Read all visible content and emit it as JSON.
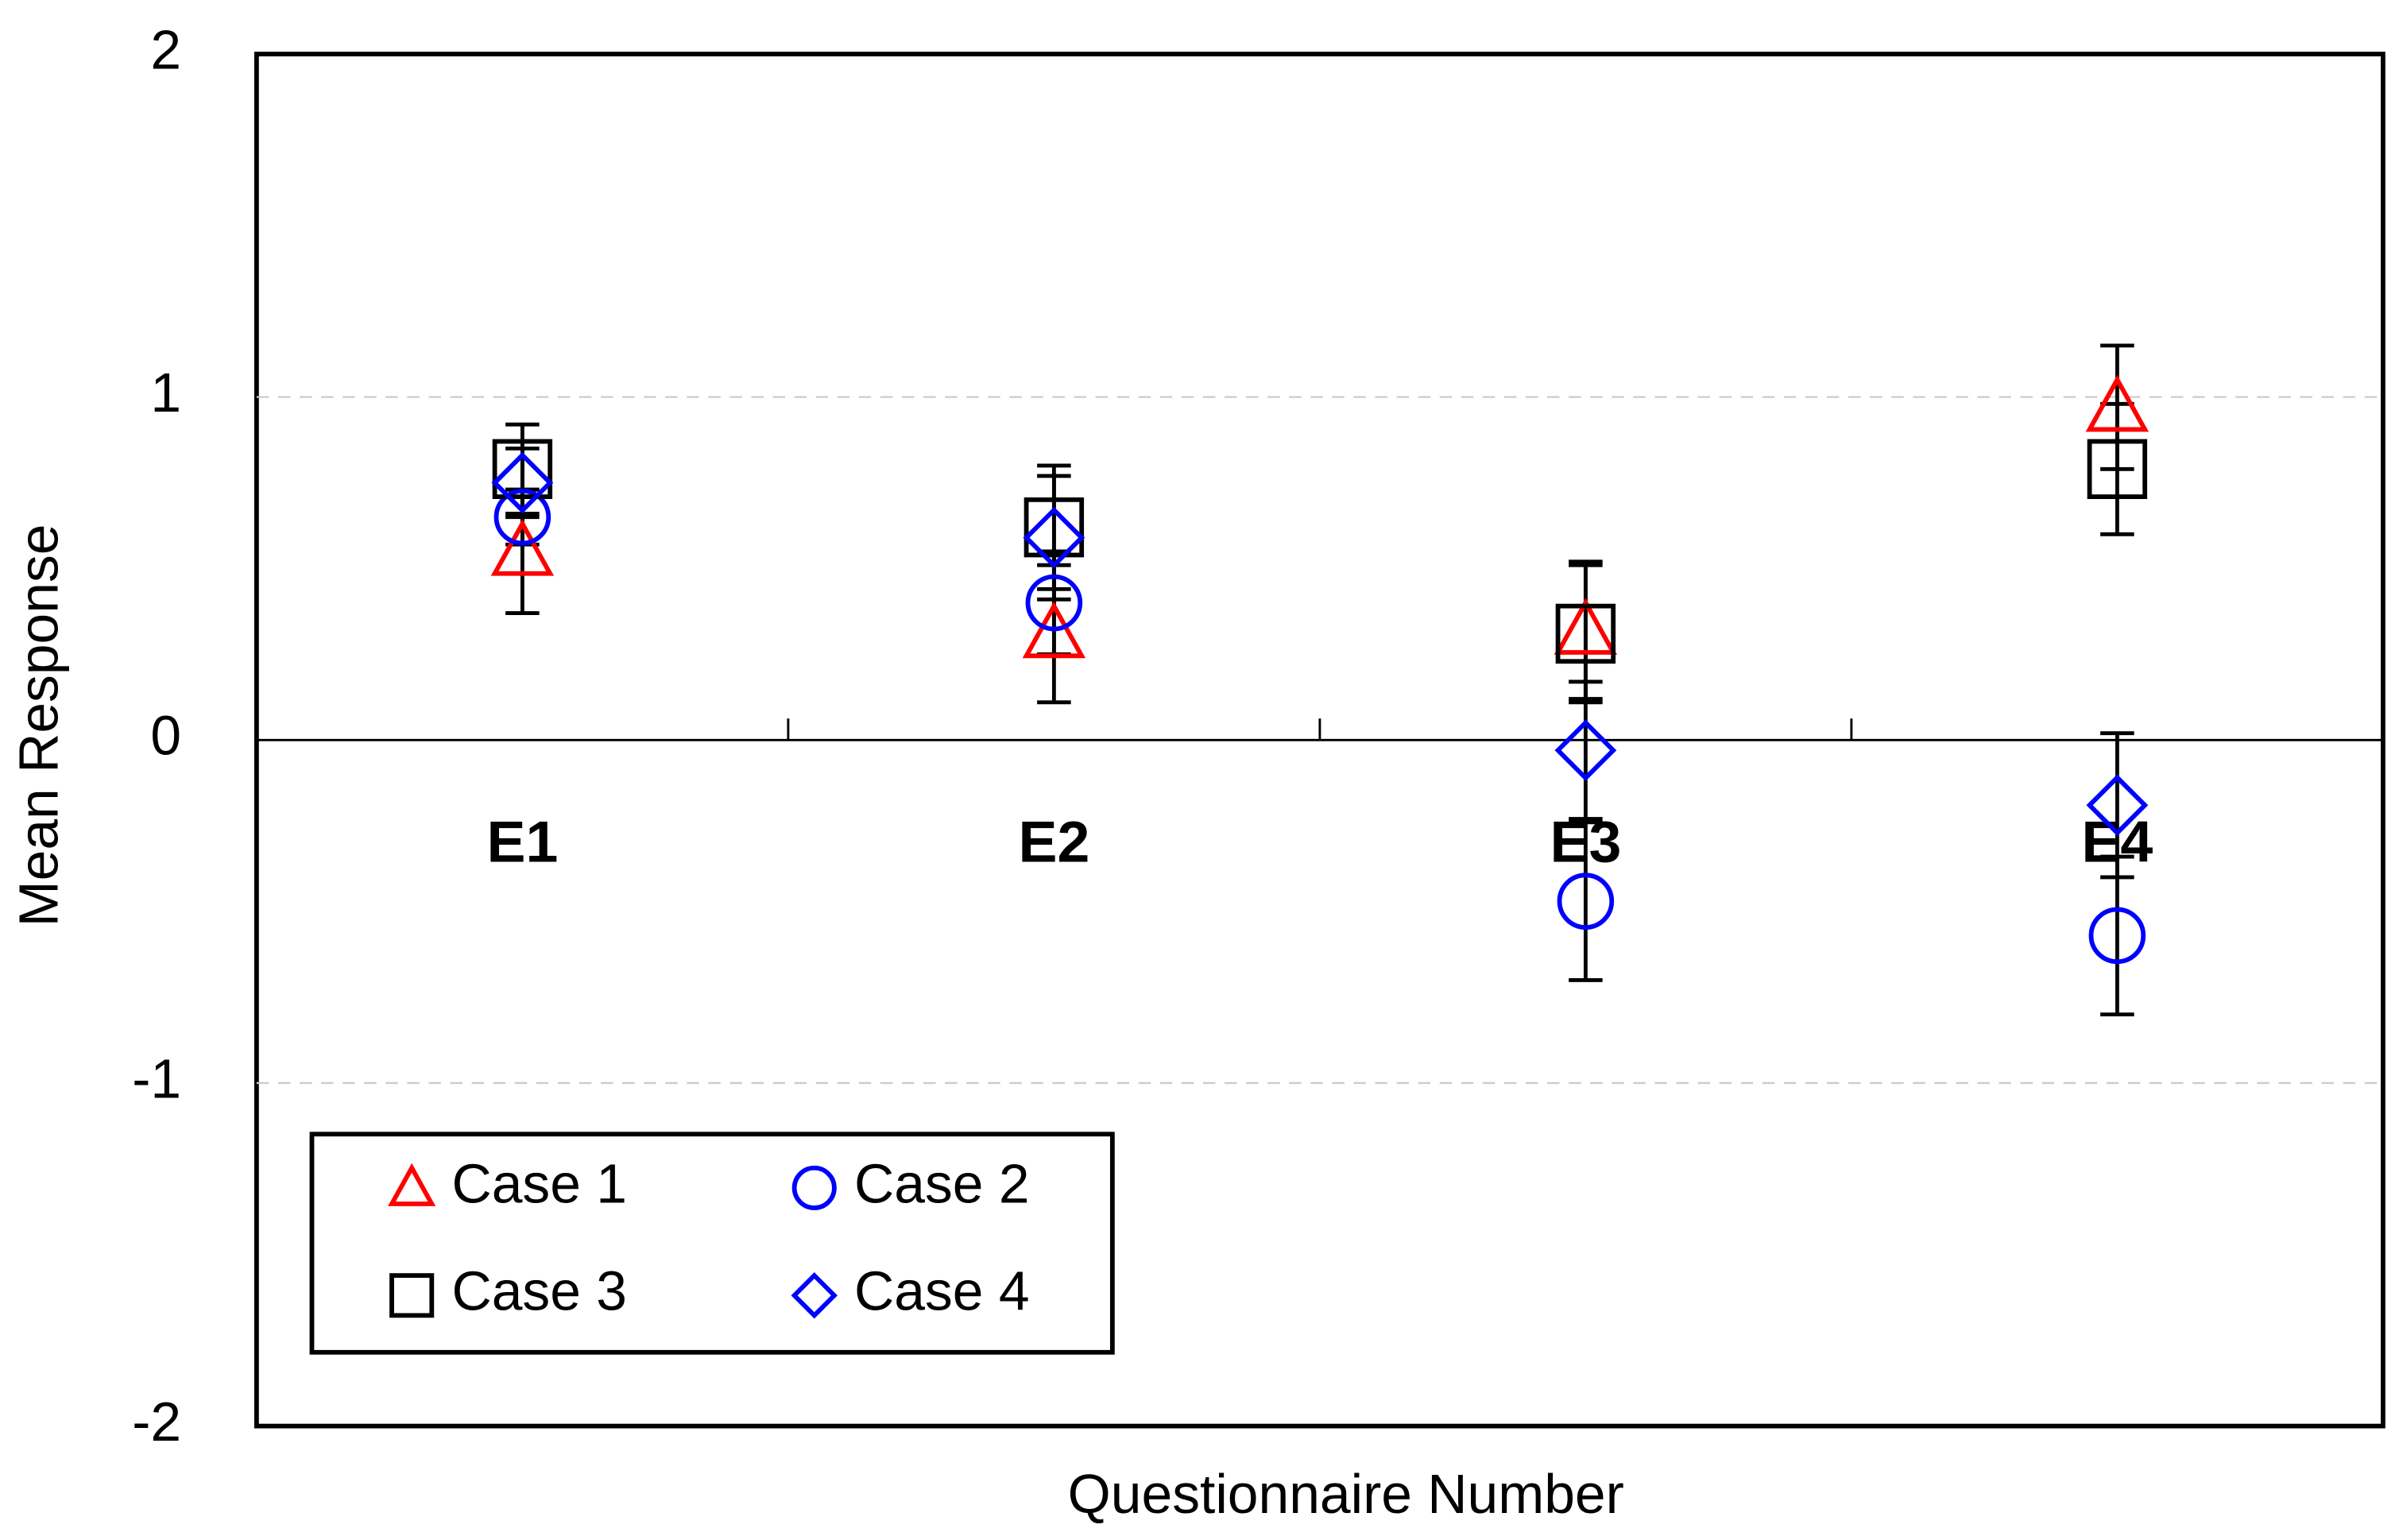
{
  "chart_data": {
    "type": "point",
    "x_label": "Questionnaire Number",
    "y_label": "Mean Response",
    "categories": [
      "E1",
      "E2",
      "E3",
      "E4"
    ],
    "ylim": [
      -2,
      2
    ],
    "yticks": [
      -2,
      -1,
      0,
      1,
      2
    ],
    "grid": true,
    "legend_position": "lower left",
    "series": [
      {
        "name": "Case 1",
        "color": "#ff0000",
        "marker": "triangle",
        "values": [
          0.55,
          0.31,
          0.32,
          0.97
        ],
        "errors": [
          0.18,
          0.2,
          0.2,
          0.18
        ]
      },
      {
        "name": "Case 2",
        "color": "#0000ff",
        "marker": "circle",
        "values": [
          0.65,
          0.4,
          -0.47,
          -0.57
        ],
        "errors": [
          0.08,
          0.15,
          0.23,
          0.23
        ]
      },
      {
        "name": "Case 3",
        "color": "#000000",
        "marker": "square",
        "values": [
          0.79,
          0.62,
          0.31,
          0.79
        ],
        "errors": [
          0.13,
          0.18,
          0.2,
          0.19
        ]
      },
      {
        "name": "Case 4",
        "color": "#0000ff",
        "marker": "diamond",
        "values": [
          0.75,
          0.59,
          -0.03,
          -0.19
        ],
        "errors": [
          0.1,
          0.18,
          0.2,
          0.21
        ]
      }
    ]
  }
}
